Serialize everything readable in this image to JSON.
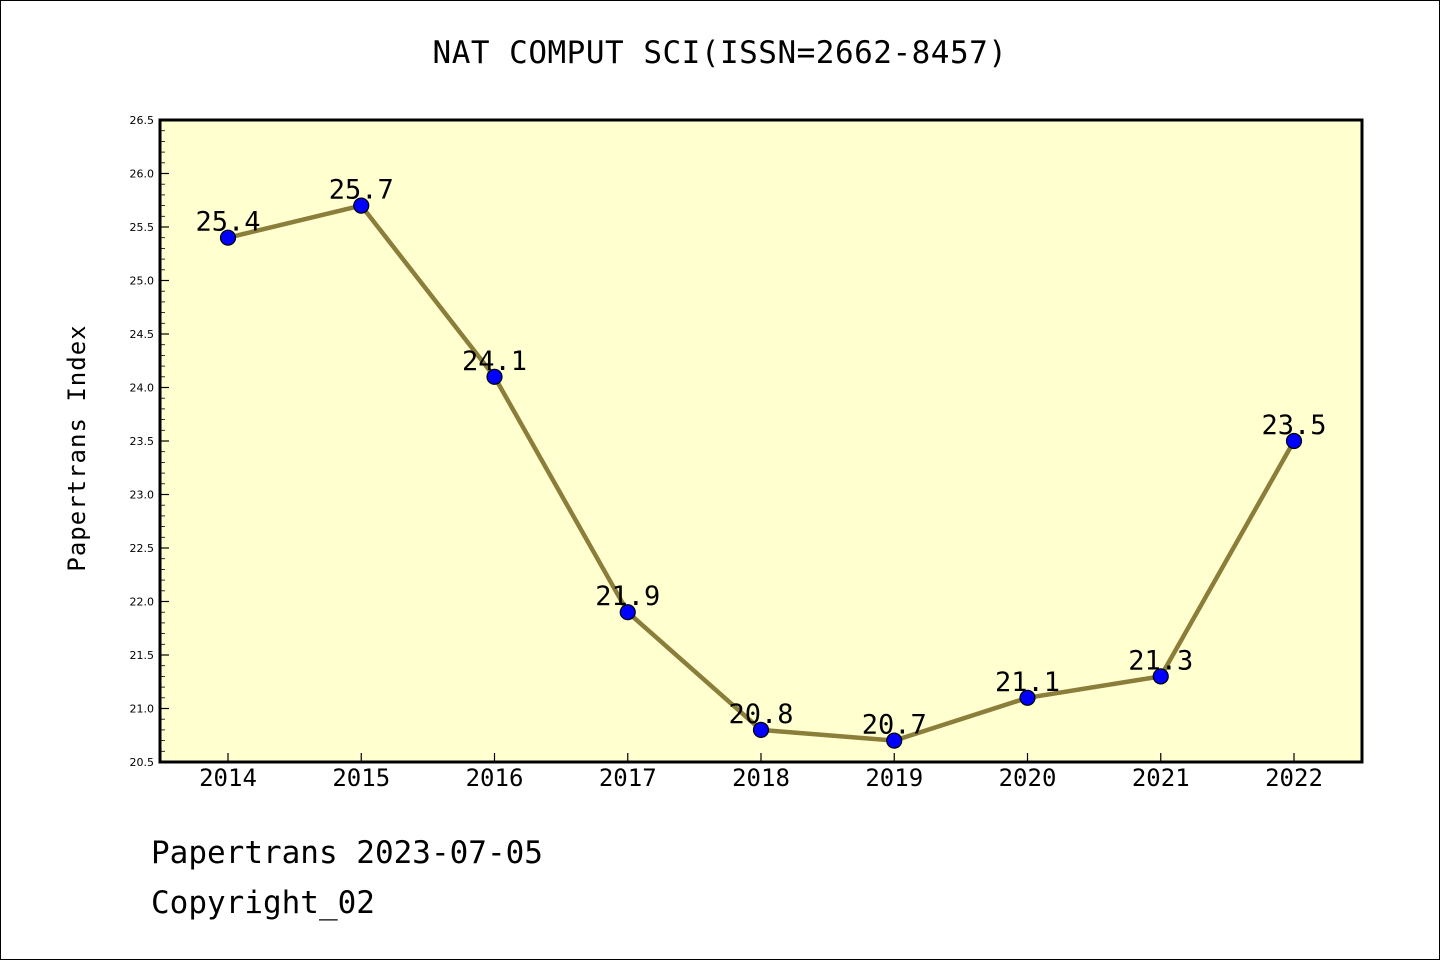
{
  "chart_data": {
    "type": "line",
    "title": "NAT COMPUT SCI(ISSN=2662-8457)",
    "xlabel": "",
    "ylabel": "Papertrans Index",
    "categories": [
      "2014",
      "2015",
      "2016",
      "2017",
      "2018",
      "2019",
      "2020",
      "2021",
      "2022"
    ],
    "series": [
      {
        "values": [
          25.4,
          25.7,
          24.1,
          21.9,
          20.8,
          20.7,
          21.1,
          21.3,
          23.5
        ],
        "value_labels": [
          "25.4",
          "25.7",
          "24.1",
          "21.9",
          "20.8",
          "20.7",
          "21.1",
          "21.3",
          "23.5"
        ]
      }
    ],
    "ylim": [
      20.5,
      26.5
    ],
    "yticks": [
      "20.5",
      "21.0",
      "21.5",
      "22.0",
      "22.5",
      "23.0",
      "23.5",
      "24.0",
      "24.5",
      "25.0",
      "25.5",
      "26.0",
      "26.5"
    ],
    "grid": false,
    "legend": "none",
    "colors": {
      "plot_background": "#ffffd0",
      "line": "#8b7d3a",
      "marker": "#0000ff",
      "marker_edge": "#000000"
    }
  },
  "footer": {
    "date_text": "Papertrans 2023-07-05",
    "copyright_text": "Copyright_02"
  }
}
